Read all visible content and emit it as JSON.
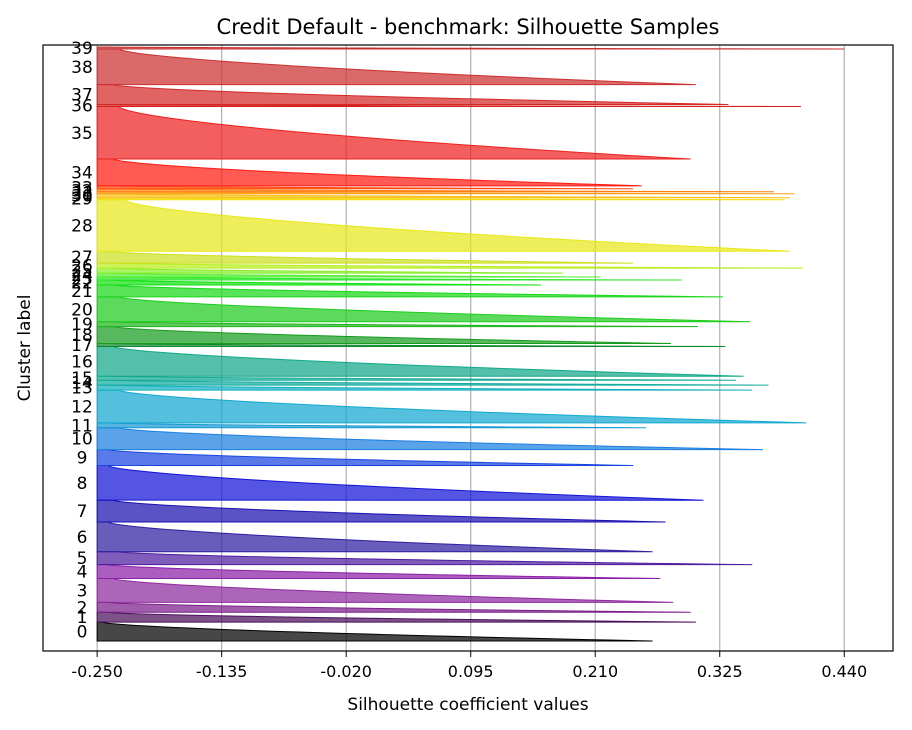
{
  "chart_data": {
    "type": "area",
    "title": "Credit Default - benchmark: Silhouette Samples",
    "xlabel": "Silhouette coefficient values",
    "ylabel": "Cluster label",
    "xlim": [
      -0.3,
      0.485
    ],
    "xticks": [
      "-0.250",
      "-0.135",
      "-0.020",
      "0.095",
      "0.210",
      "0.325",
      "0.440"
    ],
    "xtick_values": [
      -0.25,
      -0.135,
      -0.02,
      0.095,
      0.21,
      0.325,
      0.44
    ],
    "grid": "x",
    "baseline": -0.25,
    "clusters": [
      {
        "label": "0",
        "size": 19,
        "max": 0.263,
        "min": -0.245,
        "color": "#000000"
      },
      {
        "label": "1",
        "size": 10,
        "max": 0.303,
        "min": -0.24,
        "color": "#4a0f5a"
      },
      {
        "label": "2",
        "size": 10,
        "max": 0.298,
        "min": -0.24,
        "color": "#7c1f8a"
      },
      {
        "label": "3",
        "size": 24,
        "max": 0.282,
        "min": -0.235,
        "color": "#8e2a9e"
      },
      {
        "label": "4",
        "size": 14,
        "max": 0.27,
        "min": -0.24,
        "color": "#8a1fa8"
      },
      {
        "label": "5",
        "size": 13,
        "max": 0.355,
        "min": -0.23,
        "color": "#4e1d9e"
      },
      {
        "label": "6",
        "size": 30,
        "max": 0.263,
        "min": -0.24,
        "color": "#2e1ea0"
      },
      {
        "label": "7",
        "size": 22,
        "max": 0.275,
        "min": -0.235,
        "color": "#1a10b0"
      },
      {
        "label": "8",
        "size": 35,
        "max": 0.31,
        "min": -0.24,
        "color": "#1313d8"
      },
      {
        "label": "9",
        "size": 16,
        "max": 0.245,
        "min": -0.24,
        "color": "#1a46e0"
      },
      {
        "label": "10",
        "size": 22,
        "max": 0.365,
        "min": -0.23,
        "color": "#1c7fe0"
      },
      {
        "label": "11",
        "size": 5,
        "max": 0.257,
        "min": -0.24,
        "color": "#1799d2"
      },
      {
        "label": "12",
        "size": 33,
        "max": 0.405,
        "min": -0.23,
        "color": "#12a8d0"
      },
      {
        "label": "13",
        "size": 5,
        "max": 0.355,
        "min": -0.24,
        "color": "#10b0c0"
      },
      {
        "label": "14",
        "size": 5,
        "max": 0.37,
        "min": -0.235,
        "color": "#12ac9e"
      },
      {
        "label": "15",
        "size": 4,
        "max": 0.34,
        "min": -0.24,
        "color": "#14aa96"
      },
      {
        "label": "16",
        "size": 30,
        "max": 0.347,
        "min": -0.235,
        "color": "#12a888"
      },
      {
        "label": "17",
        "size": 3,
        "max": 0.33,
        "min": -0.24,
        "color": "#0c8a2a"
      },
      {
        "label": "18",
        "size": 17,
        "max": 0.28,
        "min": -0.235,
        "color": "#189c20"
      },
      {
        "label": "19",
        "size": 5,
        "max": 0.305,
        "min": -0.24,
        "color": "#1fb61c"
      },
      {
        "label": "20",
        "size": 25,
        "max": 0.353,
        "min": -0.23,
        "color": "#1ecc1e"
      },
      {
        "label": "21",
        "size": 12,
        "max": 0.328,
        "min": -0.235,
        "color": "#18d818"
      },
      {
        "label": "22",
        "size": 5,
        "max": 0.16,
        "min": -0.24,
        "color": "#12e012"
      },
      {
        "label": "23",
        "size": 3,
        "max": 0.29,
        "min": -0.24,
        "color": "#2ae82a"
      },
      {
        "label": "24",
        "size": 4,
        "max": 0.215,
        "min": -0.24,
        "color": "#50ee30"
      },
      {
        "label": "25",
        "size": 5,
        "max": 0.18,
        "min": -0.24,
        "color": "#88ee28"
      },
      {
        "label": "26",
        "size": 5,
        "max": 0.402,
        "min": -0.235,
        "color": "#b8ee20"
      },
      {
        "label": "27",
        "size": 12,
        "max": 0.245,
        "min": -0.24,
        "color": "#cce020"
      },
      {
        "label": "28",
        "size": 52,
        "max": 0.39,
        "min": -0.225,
        "color": "#e8e81a"
      },
      {
        "label": "29",
        "size": 2,
        "max": 0.385,
        "min": -0.24,
        "color": "#f4dc10"
      },
      {
        "label": "30",
        "size": 4,
        "max": 0.39,
        "min": -0.24,
        "color": "#f8c012"
      },
      {
        "label": "31",
        "size": 2,
        "max": 0.394,
        "min": -0.24,
        "color": "#ff9d14"
      },
      {
        "label": "32",
        "size": 3,
        "max": 0.375,
        "min": -0.24,
        "color": "#ff7d10"
      },
      {
        "label": "33",
        "size": 3,
        "max": 0.245,
        "min": -0.24,
        "color": "#ff4a0a"
      },
      {
        "label": "34",
        "size": 27,
        "max": 0.253,
        "min": -0.235,
        "color": "#ff1a10"
      },
      {
        "label": "35",
        "size": 53,
        "max": 0.298,
        "min": -0.23,
        "color": "#ee2020"
      },
      {
        "label": "36",
        "size": 2,
        "max": 0.4,
        "min": -0.24,
        "color": "#d8201a"
      },
      {
        "label": "37",
        "size": 20,
        "max": 0.333,
        "min": -0.235,
        "color": "#d42828"
      },
      {
        "label": "38",
        "size": 36,
        "max": 0.303,
        "min": -0.23,
        "color": "#cc3030"
      },
      {
        "label": "39",
        "size": 2,
        "max": 0.44,
        "min": -0.24,
        "color": "#c83030"
      }
    ]
  }
}
